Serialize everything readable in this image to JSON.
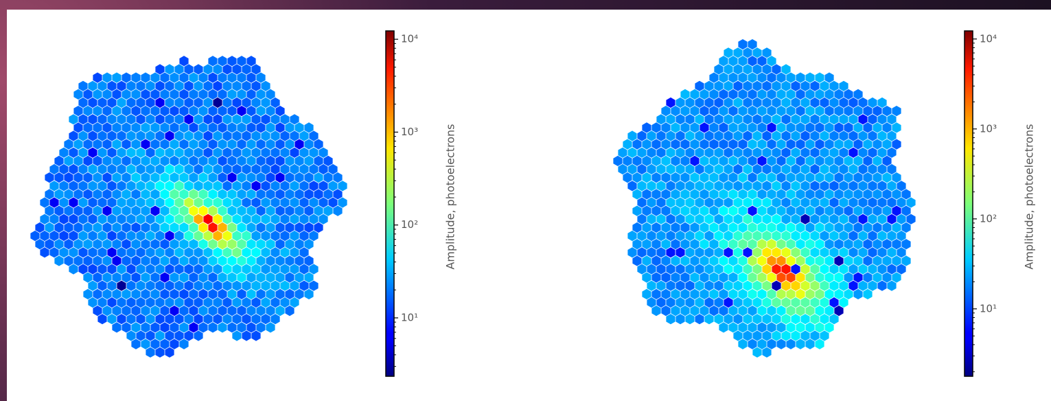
{
  "chart_data": [
    {
      "type": "camera",
      "colormap": "jet",
      "log_scale": true,
      "colorbar_label": "Amplitude, photoelectrons",
      "ylim": [
        2.35,
        12300
      ],
      "yticks": [
        {
          "value": 10,
          "label": "10¹"
        },
        {
          "value": 100,
          "label": "10²"
        },
        {
          "value": 1000,
          "label": "10³"
        },
        {
          "value": 10000,
          "label": "10⁴"
        }
      ]
    },
    {
      "type": "camera",
      "colormap": "jet",
      "log_scale": true,
      "colorbar_label": "Amplitude, photoelectrons",
      "ylim": [
        1.78,
        12300
      ],
      "yticks": [
        {
          "value": 10,
          "label": "10¹"
        },
        {
          "value": 100,
          "label": "10²"
        },
        {
          "value": 1000,
          "label": "10³"
        },
        {
          "value": 10000,
          "label": "10⁴"
        }
      ]
    }
  ]
}
